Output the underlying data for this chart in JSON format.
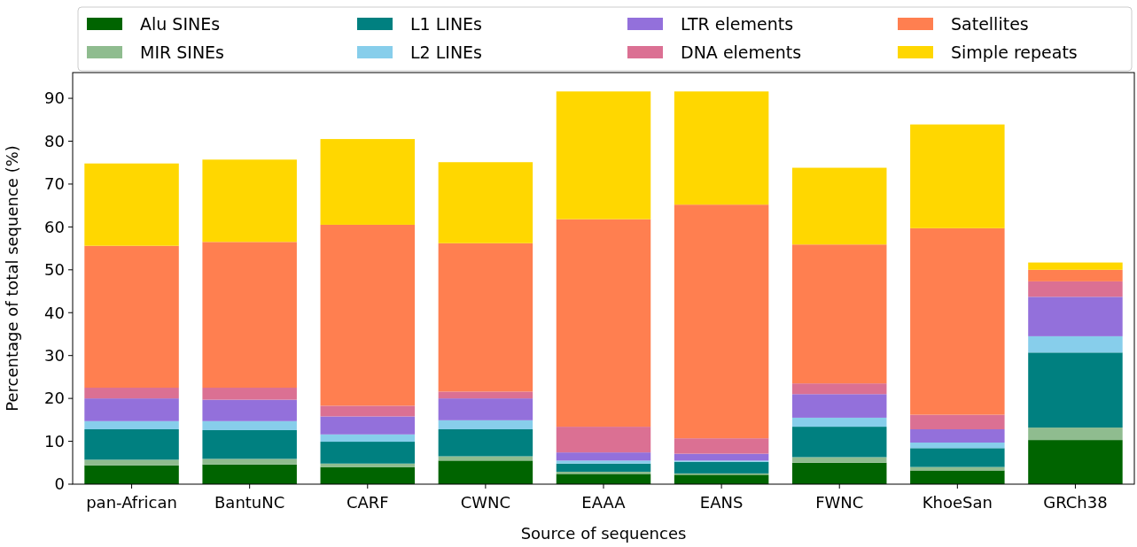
{
  "chart_data": {
    "type": "bar",
    "stacked": true,
    "xlabel": "Source of sequences",
    "ylabel": "Percentage of total sequence (%)",
    "categories": [
      "pan-African",
      "BantuNC",
      "CARF",
      "CWNC",
      "EAAA",
      "EANS",
      "FWNC",
      "KhoeSan",
      "GRCh38"
    ],
    "series": [
      {
        "name": "Alu SINEs",
        "color": "#006400",
        "values": [
          4.4,
          4.6,
          4.0,
          5.5,
          2.4,
          2.2,
          5.0,
          3.2,
          10.3
        ]
      },
      {
        "name": "MIR SINEs",
        "color": "#8fbc8f",
        "values": [
          1.3,
          1.3,
          0.8,
          1.0,
          0.5,
          0.3,
          1.3,
          0.8,
          2.9
        ]
      },
      {
        "name": "L1 LINEs",
        "color": "#008080",
        "values": [
          7.1,
          6.7,
          5.1,
          6.3,
          1.9,
          2.7,
          7.1,
          4.4,
          17.5
        ]
      },
      {
        "name": "L2 LINEs",
        "color": "#87ceeb",
        "values": [
          1.9,
          2.1,
          1.7,
          2.1,
          0.7,
          0.3,
          2.1,
          1.3,
          3.8
        ]
      },
      {
        "name": "LTR elements",
        "color": "#9370db",
        "values": [
          5.3,
          5.0,
          4.2,
          5.1,
          1.9,
          1.6,
          5.5,
          3.1,
          9.2
        ]
      },
      {
        "name": "DNA elements",
        "color": "#db7093",
        "values": [
          2.5,
          2.8,
          2.5,
          1.6,
          6.0,
          3.6,
          2.5,
          3.4,
          3.6
        ]
      },
      {
        "name": "Satellites",
        "color": "#ff7f50",
        "values": [
          33.1,
          34.0,
          42.2,
          34.6,
          48.4,
          54.5,
          32.4,
          43.5,
          2.7
        ]
      },
      {
        "name": "Simple repeats",
        "color": "#ffd700",
        "values": [
          19.2,
          19.2,
          20.0,
          18.9,
          29.8,
          26.4,
          17.9,
          24.2,
          1.7
        ]
      }
    ],
    "ylim": [
      0,
      96
    ],
    "yticks": [
      0,
      10,
      20,
      30,
      40,
      50,
      60,
      70,
      80,
      90
    ],
    "legend": "top",
    "grid": false
  }
}
